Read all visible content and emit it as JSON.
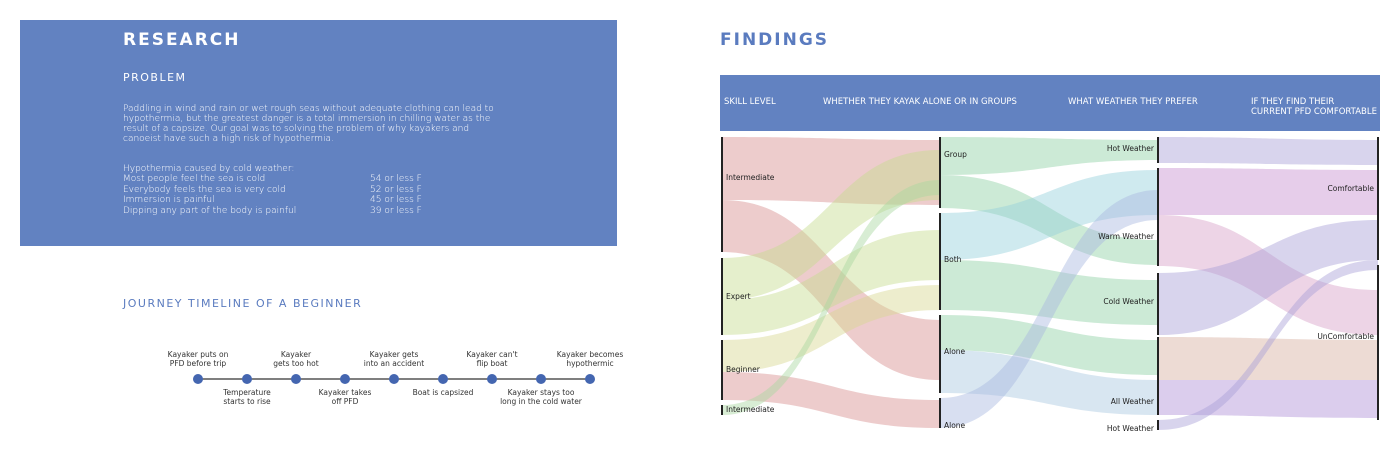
{
  "research": {
    "title": "RESEARCH",
    "subtitle": "PROBLEM",
    "paragraph": "Paddling in wind and rain or wet rough seas without adequate clothing can lead to hypothermia, but the greatest danger is a total immersion in chilling water as the result of a capsize.  Our goal was to solving the problem of why kayakers and canoeist have such a high risk of hypothermia.",
    "list_heading": "Hypothermia caused by cold weather:",
    "items": [
      {
        "label": "Most people feel the sea is cold",
        "value": "54 or less F"
      },
      {
        "label": "Everybody feels the sea is very cold",
        "value": "52 or less F"
      },
      {
        "label": "Immersion is painful",
        "value": "45 or less F"
      },
      {
        "label": "Dipping any part of the body is painful",
        "value": "39 or less F"
      }
    ]
  },
  "journey": {
    "title": "JOURNEY TIMELINE OF A BEGINNER",
    "steps": [
      "Kayaker puts on\nPFD before trip",
      "Temperature\nstarts to rise",
      "Kayaker\ngets too hot",
      "Kayaker takes\noff PFD",
      "Kayaker gets\ninto an accident",
      "Boat is capsized",
      "Kayaker can't\nflip boat",
      "Kayaker stays too\nlong in the cold water",
      "Kayaker becomes\nhypothermic"
    ]
  },
  "findings": {
    "title": "FINDINGS",
    "columns": [
      {
        "header": "SKILL LEVEL",
        "nodes": [
          "Intermediate",
          "Expert",
          "Beginner",
          "Intermediate"
        ]
      },
      {
        "header": "WHETHER THEY KAYAK ALONE OR IN GROUPS",
        "nodes": [
          "Group",
          "Both",
          "Alone",
          "Alone"
        ]
      },
      {
        "header": "WHAT WEATHER THEY PREFER",
        "nodes": [
          "Hot Weather",
          "Warm Weather",
          "Cold Weather",
          "All Weather",
          "Hot Weather"
        ]
      },
      {
        "header": "IF THEY FIND THEIR\nCURRENT PFD COMFORTABLE",
        "nodes": [
          "Comfortable",
          "UnComfortable"
        ]
      }
    ]
  }
}
